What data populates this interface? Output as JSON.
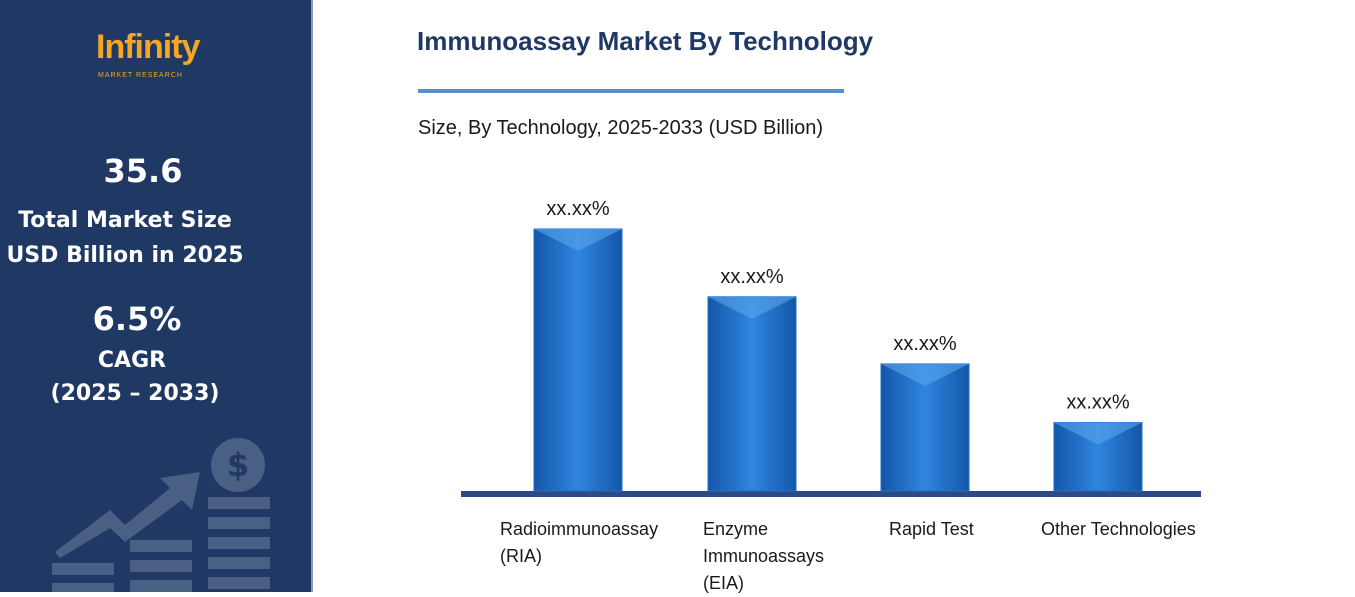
{
  "sidebar": {
    "brand": "Infinity",
    "brand_sub": "MARKET RESEARCH",
    "market_size": 35.6,
    "market_size_label_1": "Total Market Size",
    "market_size_label_2": "USD Billion in 2025",
    "cagr": "6.5%",
    "cagr_label": "CAGR",
    "cagr_period": "(2025 – 2033)"
  },
  "chart_data": {
    "type": "bar",
    "title": "Immunoassay Market By Technology",
    "subtitle": "Size, By Technology, 2025-2033 (USD Billion)",
    "categories": [
      "Radioimmunoassay (RIA)",
      "Enzyme Immunoassays (EIA)",
      "Rapid Test",
      "Other Technologies"
    ],
    "values": [
      40.2,
      29.8,
      19.5,
      10.5
    ],
    "value_labels": [
      "xx.xx%",
      "xx.xx%",
      "xx.xx%",
      "xx.xx%"
    ],
    "color": "#1f6fc8"
  }
}
